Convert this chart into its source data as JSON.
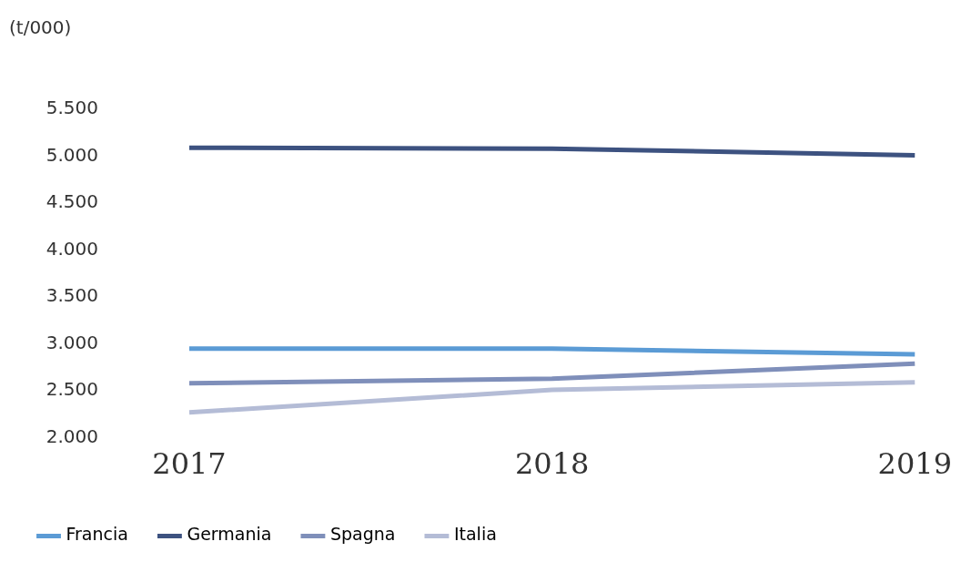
{
  "chart_data": {
    "type": "line",
    "ylabel": "(t/000)",
    "categories": [
      "2017",
      "2018",
      "2019"
    ],
    "series": [
      {
        "name": "Francia",
        "color": "#5b9bd5",
        "values": [
          2950,
          2950,
          2890
        ]
      },
      {
        "name": "Germania",
        "color": "#3d5280",
        "values": [
          5090,
          5080,
          5010
        ]
      },
      {
        "name": "Spagna",
        "color": "#7f8fba",
        "values": [
          2580,
          2630,
          2790
        ]
      },
      {
        "name": "Italia",
        "color": "#b4bcd6",
        "values": [
          2270,
          2510,
          2590
        ]
      }
    ],
    "ylim": [
      2000,
      5500
    ],
    "yticks": [
      {
        "value": 2000,
        "label": "2.000"
      },
      {
        "value": 2500,
        "label": "2.500"
      },
      {
        "value": 3000,
        "label": "3.000"
      },
      {
        "value": 3500,
        "label": "3.500"
      },
      {
        "value": 4000,
        "label": "4.000"
      },
      {
        "value": 4500,
        "label": "4.500"
      },
      {
        "value": 5000,
        "label": "5.000"
      },
      {
        "value": 5500,
        "label": "5.500"
      }
    ],
    "grid": false,
    "legend": "bottom left",
    "marker": "none",
    "line_style": "solid"
  }
}
